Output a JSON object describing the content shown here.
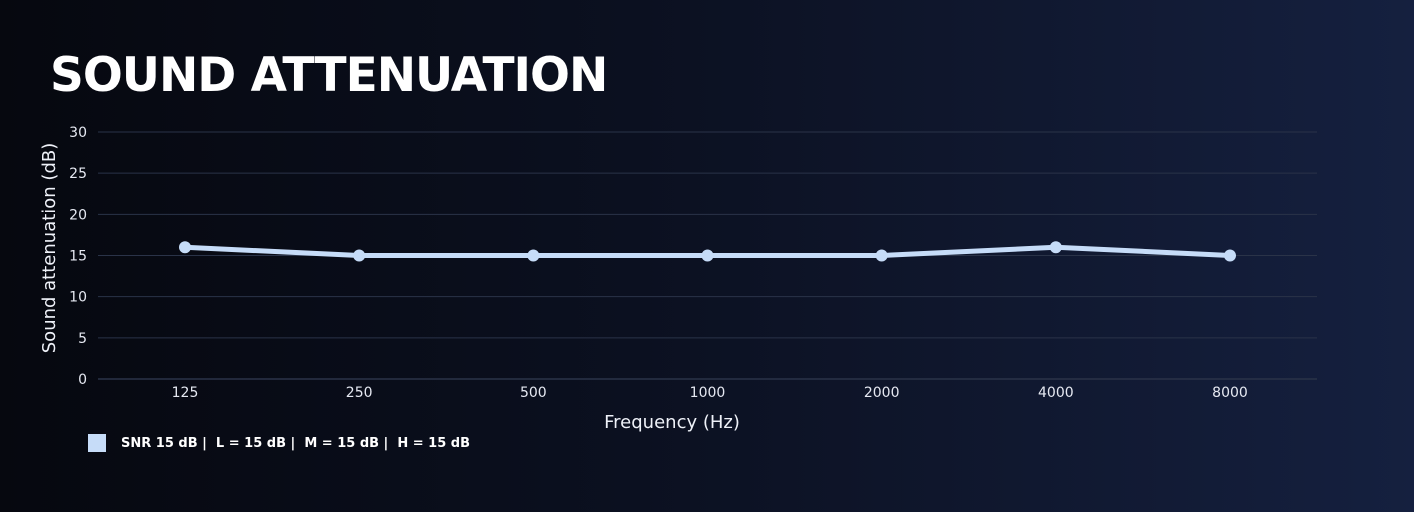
{
  "chart_data": {
    "type": "line",
    "title": "SOUND ATTENUATION",
    "xlabel": "Frequency (Hz)",
    "ylabel": "Sound attenuation (dB)",
    "categories": [
      "125",
      "250",
      "500",
      "1000",
      "2000",
      "4000",
      "8000"
    ],
    "yticks": [
      0,
      5,
      10,
      15,
      20,
      25,
      30
    ],
    "ylim": [
      0,
      30
    ],
    "grid": true,
    "legend_position": "bottom-left",
    "series": [
      {
        "name": "SNR 15 dB |  L = 15 dB |  M = 15 dB |  H = 15 dB",
        "values": [
          16,
          15,
          15,
          15,
          15,
          16,
          15
        ],
        "color": "#c6dcf8"
      }
    ]
  },
  "colors": {
    "line": "#c6dcf8",
    "grid": "#2a3348",
    "text": "#ffffff"
  }
}
